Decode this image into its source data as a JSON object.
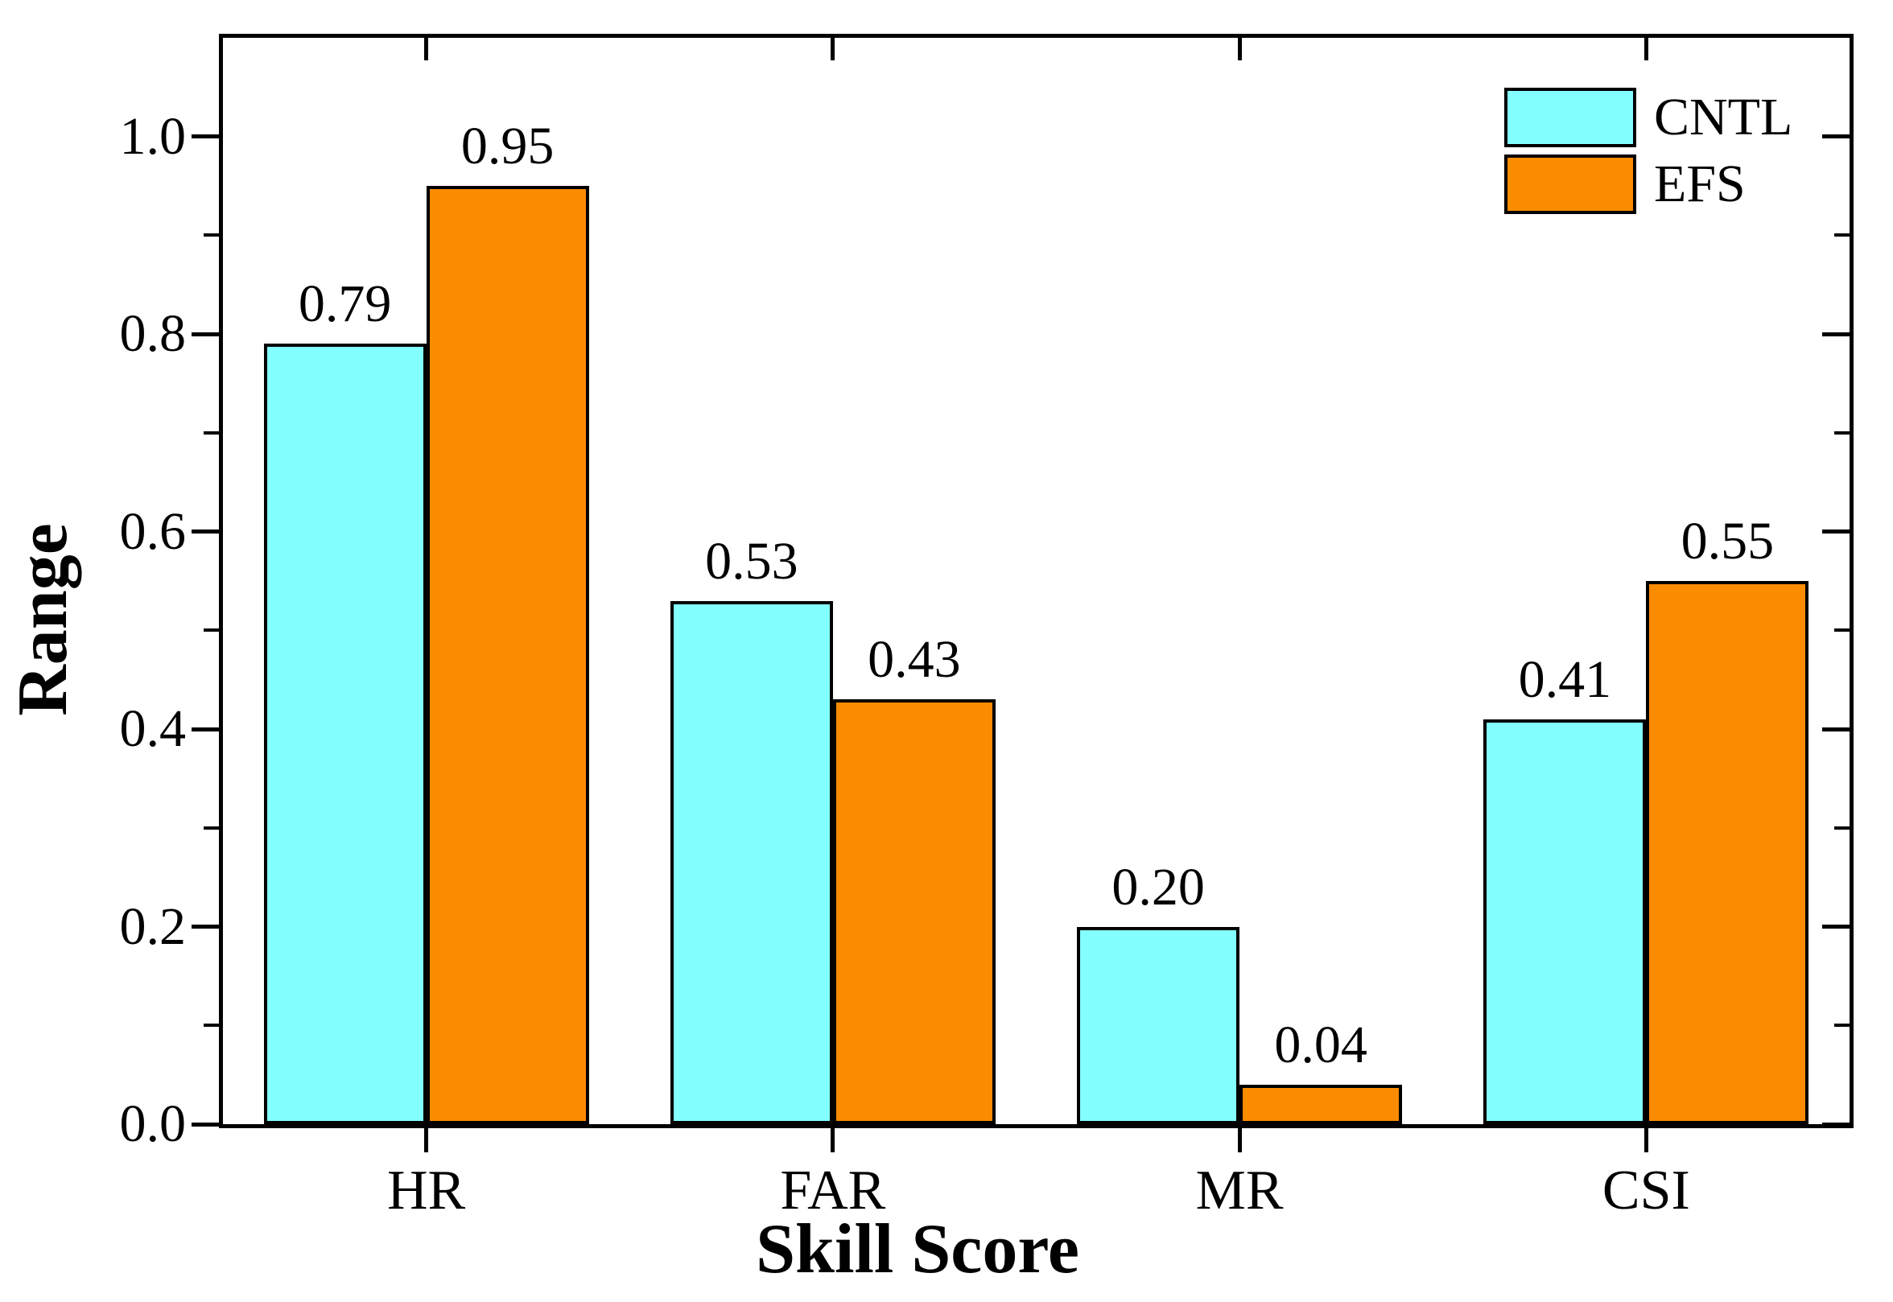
{
  "chart_data": {
    "type": "bar",
    "title": "",
    "xlabel": "Skill Score",
    "ylabel": "Range",
    "categories": [
      "HR",
      "FAR",
      "MR",
      "CSI"
    ],
    "series": [
      {
        "name": "CNTL",
        "color": "#84FFFF",
        "values": [
          0.79,
          0.53,
          0.2,
          0.41
        ],
        "labels": [
          "0.79",
          "0.53",
          "0.20",
          "0.41"
        ]
      },
      {
        "name": "EFS",
        "color": "#FB8B00",
        "values": [
          0.95,
          0.43,
          0.04,
          0.55
        ],
        "labels": [
          "0.95",
          "0.43",
          "0.04",
          "0.55"
        ]
      }
    ],
    "ylim": [
      0,
      1.1
    ],
    "y_major_ticks": [
      0.0,
      0.2,
      0.4,
      0.6,
      0.8,
      1.0
    ],
    "y_major_labels": [
      "0.0",
      "0.2",
      "0.4",
      "0.6",
      "0.8",
      "1.0"
    ],
    "y_minor_ticks": [
      0.1,
      0.3,
      0.5,
      0.7,
      0.9
    ],
    "grid": false,
    "legend_position": "top-right",
    "axis_color": "#000000",
    "bar_outline_color": "#000000",
    "frame": "full-box-with-mirrored-ticks"
  }
}
